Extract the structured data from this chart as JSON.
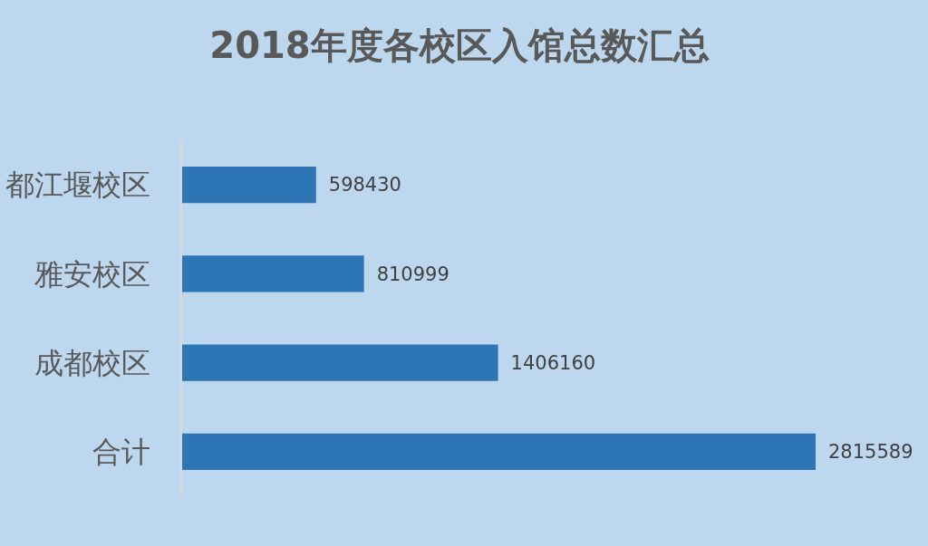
{
  "chart_data": {
    "type": "bar",
    "orientation": "horizontal",
    "title": "2018年度各校区入馆总数汇总",
    "categories": [
      "都江堰校区",
      "雅安校区",
      "成都校区",
      "合计"
    ],
    "values": [
      598430,
      810999,
      1406160,
      2815589
    ],
    "color": "#2e75b6",
    "data_labels": true
  }
}
